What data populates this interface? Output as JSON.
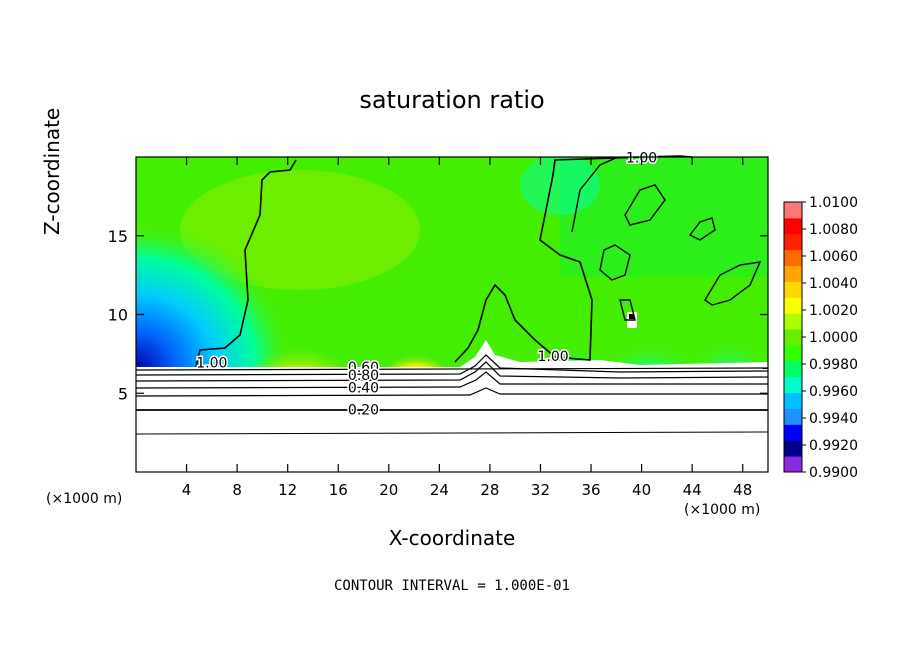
{
  "chart_data": {
    "type": "heatmap",
    "title": "saturation ratio",
    "xlabel": "X-coordinate",
    "ylabel": "Z-coordinate",
    "x_unit_left": "(×1000 m)",
    "x_unit_right": "(×1000 m)",
    "xlim": [
      0,
      50
    ],
    "ylim": [
      0,
      20
    ],
    "xticks": [
      4,
      8,
      12,
      16,
      20,
      24,
      28,
      32,
      36,
      40,
      44,
      48
    ],
    "yticks": [
      5,
      10,
      15
    ],
    "colorbar": {
      "min": 0.99,
      "max": 1.01,
      "labels": [
        "1.0100",
        "1.0080",
        "1.0060",
        "1.0040",
        "1.0020",
        "1.0000",
        "0.9980",
        "0.9960",
        "0.9940",
        "0.9920",
        "0.9900"
      ],
      "colors": [
        "#8a2be2",
        "#00008b",
        "#0000ff",
        "#1e90ff",
        "#00bfff",
        "#00ffcc",
        "#00ff66",
        "#33ff00",
        "#66ee00",
        "#aaff00",
        "#ffff00",
        "#ffd700",
        "#ffa500",
        "#ff6a00",
        "#ff2200",
        "#ff0000",
        "#ff7777"
      ]
    },
    "contour_labels": [
      {
        "text": "1.00",
        "x": 40,
        "z": 19.9
      },
      {
        "text": "1.00",
        "x": 6,
        "z": 6.9
      },
      {
        "text": "1.00",
        "x": 33,
        "z": 7.3
      },
      {
        "text": "0.60",
        "x": 18,
        "z": 6.6
      },
      {
        "text": "0.80",
        "x": 18,
        "z": 6.1
      },
      {
        "text": "0.40",
        "x": 18,
        "z": 5.3
      },
      {
        "text": "0.20",
        "x": 18,
        "z": 3.9
      }
    ],
    "contour_interval": "CONTOUR INTERVAL = 1.000E-01"
  }
}
